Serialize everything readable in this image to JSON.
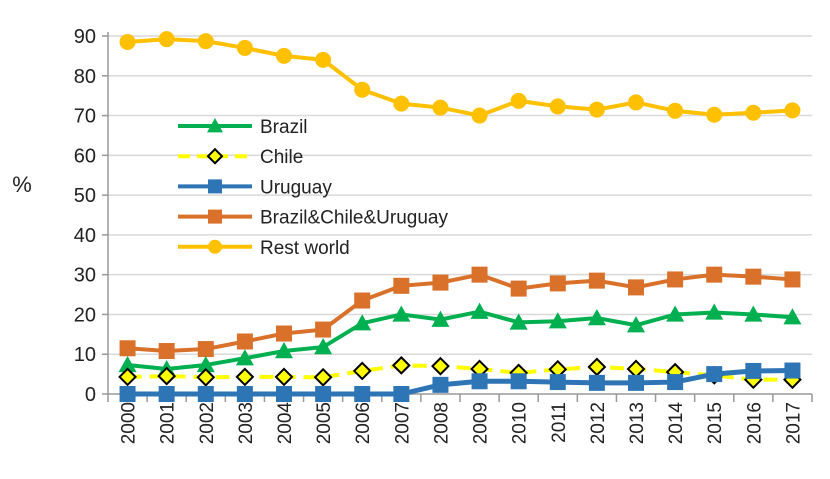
{
  "chart_data": {
    "type": "line",
    "title": "",
    "xlabel": "",
    "ylabel": "%",
    "ylim": [
      0,
      90
    ],
    "yticks": [
      0,
      10,
      20,
      30,
      40,
      50,
      60,
      70,
      80,
      90
    ],
    "grid": "horizontal",
    "legend_position": "center-left",
    "x": [
      "2000",
      "2001",
      "2002",
      "2003",
      "2004",
      "2005",
      "2006",
      "2007",
      "2008",
      "2009",
      "2010",
      "2011",
      "2012",
      "2013",
      "2014",
      "2015",
      "2016",
      "2017"
    ],
    "series": [
      {
        "name": "Brazil",
        "color": "#00B050",
        "marker": "triangle",
        "dash": false,
        "values": [
          7.3,
          6.3,
          7.3,
          9,
          10.8,
          11.8,
          17.8,
          20,
          18.7,
          20.7,
          18,
          18.3,
          19.1,
          17.3,
          20,
          20.5,
          20,
          19.3
        ]
      },
      {
        "name": "Chile",
        "color": "#FFFF00",
        "marker": "diamond",
        "dash": true,
        "values": [
          4.3,
          4.5,
          4.2,
          4.3,
          4.3,
          4.2,
          5.8,
          7.2,
          7,
          6.3,
          5.3,
          6.2,
          6.8,
          6.3,
          5.5,
          4.7,
          3.6,
          3.6
        ]
      },
      {
        "name": "Uruguay",
        "color": "#2E75B6",
        "marker": "square",
        "dash": false,
        "values": [
          0,
          0,
          0,
          0,
          0,
          0,
          0,
          0,
          2.3,
          3.2,
          3.2,
          3,
          2.8,
          2.8,
          3,
          5,
          5.8,
          5.9
        ]
      },
      {
        "name": "Brazil&Chile&Uruguay",
        "color": "#D9712B",
        "marker": "square",
        "dash": false,
        "values": [
          11.5,
          10.8,
          11.3,
          13.2,
          15.2,
          16.2,
          23.5,
          27.2,
          28,
          30,
          26.5,
          27.8,
          28.5,
          26.8,
          28.8,
          30,
          29.5,
          28.8
        ]
      },
      {
        "name": "Rest world",
        "color": "#FFC000",
        "marker": "circle",
        "dash": false,
        "values": [
          88.5,
          89.2,
          88.7,
          87,
          85,
          84,
          76.5,
          73,
          72,
          70,
          73.7,
          72.3,
          71.5,
          73.3,
          71.2,
          70.2,
          70.7,
          71.3
        ]
      }
    ]
  }
}
